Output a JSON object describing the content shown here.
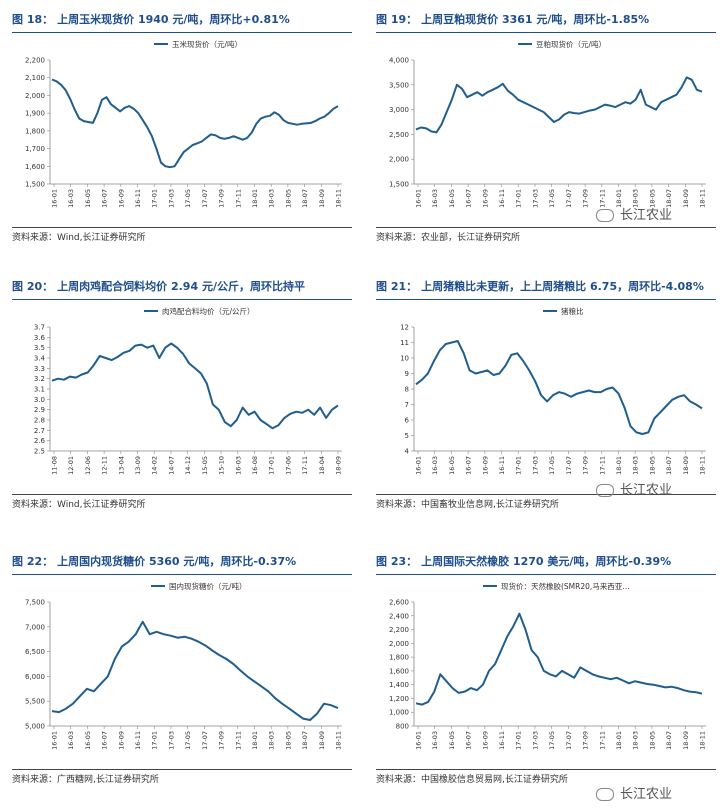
{
  "watermark": "长江农业",
  "chart_data": [
    {
      "id": "p1",
      "type": "line",
      "label": "图 18：",
      "title": "上周玉米现货价 1940 元/吨，周环比+0.81%",
      "source": "资料来源：Wind,长江证券研究所",
      "legend": "玉米现货价（元/吨）",
      "ylim": [
        1500,
        2200
      ],
      "yticks": [
        1500,
        1600,
        1700,
        1800,
        1900,
        2000,
        2100,
        2200
      ],
      "ytick_labels": [
        "1,500",
        "1,600",
        "1,700",
        "1,800",
        "1,900",
        "2,000",
        "2,100",
        "2,200"
      ],
      "xticks": [
        "16-01",
        "16-03",
        "16-05",
        "16-07",
        "16-09",
        "16-11",
        "17-01",
        "17-03",
        "17-05",
        "17-07",
        "17-09",
        "17-11",
        "18-01",
        "18-03",
        "18-05",
        "18-07",
        "18-09",
        "18-11"
      ],
      "series": [
        {
          "color": "#1f5e8e",
          "values": [
            2090,
            2080,
            2060,
            2030,
            1980,
            1920,
            1870,
            1855,
            1850,
            1845,
            1900,
            1975,
            1990,
            1950,
            1930,
            1910,
            1930,
            1940,
            1925,
            1900,
            1860,
            1820,
            1770,
            1700,
            1620,
            1600,
            1595,
            1600,
            1640,
            1680,
            1700,
            1720,
            1730,
            1740,
            1760,
            1780,
            1775,
            1760,
            1755,
            1760,
            1770,
            1760,
            1750,
            1760,
            1790,
            1840,
            1870,
            1880,
            1885,
            1905,
            1890,
            1860,
            1845,
            1840,
            1835,
            1840,
            1842,
            1845,
            1855,
            1870,
            1880,
            1900,
            1925,
            1940
          ]
        }
      ]
    },
    {
      "id": "p2",
      "type": "line",
      "label": "图 19：",
      "title": "上周豆粕现货价 3361 元/吨，周环比-1.85%",
      "source": "资料来源：农业部，长江证券研究所",
      "legend": "豆粕现货价（元/吨）",
      "ylim": [
        1500,
        4000
      ],
      "yticks": [
        1500,
        2000,
        2500,
        3000,
        3500,
        4000
      ],
      "ytick_labels": [
        "1,500",
        "2,000",
        "2,500",
        "3,000",
        "3,500",
        "4,000"
      ],
      "xticks": [
        "16-01",
        "16-03",
        "16-05",
        "16-07",
        "16-09",
        "16-11",
        "17-01",
        "17-03",
        "17-05",
        "17-07",
        "17-09",
        "17-11",
        "18-01",
        "18-03",
        "18-05",
        "18-07",
        "18-09",
        "18-11"
      ],
      "series": [
        {
          "color": "#1f5e8e",
          "values": [
            2600,
            2640,
            2620,
            2560,
            2540,
            2700,
            2950,
            3200,
            3500,
            3420,
            3250,
            3300,
            3350,
            3280,
            3350,
            3400,
            3450,
            3520,
            3380,
            3300,
            3200,
            3150,
            3100,
            3050,
            3000,
            2950,
            2850,
            2750,
            2800,
            2900,
            2950,
            2930,
            2920,
            2950,
            2980,
            3000,
            3050,
            3100,
            3080,
            3050,
            3100,
            3150,
            3120,
            3200,
            3400,
            3100,
            3050,
            3000,
            3150,
            3200,
            3250,
            3300,
            3450,
            3650,
            3600,
            3400,
            3361
          ]
        }
      ]
    },
    {
      "id": "p3",
      "type": "line",
      "label": "图 20：",
      "title": "上周肉鸡配合饲料均价 2.94 元/公斤，周环比持平",
      "source": "资料来源：Wind,长江证券研究所",
      "legend": "肉鸡配合料均价（元/公斤）",
      "ylim": [
        2.5,
        3.7
      ],
      "yticks": [
        2.5,
        2.6,
        2.7,
        2.8,
        2.9,
        3.0,
        3.1,
        3.2,
        3.3,
        3.4,
        3.5,
        3.6,
        3.7
      ],
      "ytick_labels": [
        "2.5",
        "2.6",
        "2.7",
        "2.8",
        "2.9",
        "3.0",
        "3.1",
        "3.2",
        "3.3",
        "3.4",
        "3.5",
        "3.6",
        "3.7"
      ],
      "xticks": [
        "11-08",
        "12-01",
        "12-06",
        "12-11",
        "13-04",
        "13-09",
        "14-02",
        "14-07",
        "14-12",
        "15-05",
        "15-10",
        "16-03",
        "16-08",
        "17-01",
        "17-06",
        "17-11",
        "18-04",
        "18-09"
      ],
      "series": [
        {
          "color": "#1f5e8e",
          "values": [
            3.18,
            3.2,
            3.19,
            3.22,
            3.21,
            3.24,
            3.26,
            3.33,
            3.42,
            3.4,
            3.38,
            3.41,
            3.45,
            3.47,
            3.52,
            3.53,
            3.5,
            3.52,
            3.4,
            3.5,
            3.54,
            3.5,
            3.44,
            3.35,
            3.3,
            3.25,
            3.15,
            2.95,
            2.9,
            2.78,
            2.74,
            2.8,
            2.92,
            2.85,
            2.88,
            2.8,
            2.76,
            2.72,
            2.75,
            2.82,
            2.86,
            2.88,
            2.87,
            2.9,
            2.85,
            2.92,
            2.82,
            2.9,
            2.94
          ]
        }
      ]
    },
    {
      "id": "p4",
      "type": "line",
      "label": "图 21：",
      "title": "上周猪粮比未更新，上上周猪粮比 6.75，周环比-4.08%",
      "source": "资料来源：中国畜牧业信息网,长江证券研究所",
      "legend": "猪粮比",
      "ylim": [
        4,
        12
      ],
      "yticks": [
        4,
        5,
        6,
        7,
        8,
        9,
        10,
        11,
        12
      ],
      "ytick_labels": [
        "4",
        "5",
        "6",
        "7",
        "8",
        "9",
        "10",
        "11",
        "12"
      ],
      "xticks": [
        "16-01",
        "16-03",
        "16-05",
        "16-07",
        "16-09",
        "16-11",
        "17-01",
        "17-03",
        "17-05",
        "17-07",
        "17-09",
        "17-11",
        "18-01",
        "18-03",
        "18-05",
        "18-07",
        "18-09",
        "18-11"
      ],
      "series": [
        {
          "color": "#1f5e8e",
          "values": [
            8.3,
            8.6,
            9.0,
            9.8,
            10.5,
            10.9,
            11.0,
            11.1,
            10.3,
            9.2,
            9.0,
            9.1,
            9.2,
            8.9,
            9.0,
            9.5,
            10.2,
            10.3,
            9.8,
            9.2,
            8.5,
            7.6,
            7.2,
            7.6,
            7.8,
            7.7,
            7.5,
            7.7,
            7.8,
            7.9,
            7.8,
            7.8,
            8.0,
            8.1,
            7.7,
            6.8,
            5.6,
            5.2,
            5.1,
            5.2,
            6.1,
            6.5,
            6.9,
            7.3,
            7.5,
            7.6,
            7.2,
            7.0,
            6.75
          ]
        }
      ]
    },
    {
      "id": "p5",
      "type": "line",
      "label": "图 22：",
      "title": "上周国内现货糖价 5360 元/吨，周环比-0.37%",
      "source": "资料来源：广西糖网,长江证券研究所",
      "legend": "国内现货糖价（元/吨）",
      "ylim": [
        5000,
        7500
      ],
      "yticks": [
        5000,
        5500,
        6000,
        6500,
        7000,
        7500
      ],
      "ytick_labels": [
        "5,000",
        "5,500",
        "6,000",
        "6,500",
        "7,000",
        "7,500"
      ],
      "xticks": [
        "16-01",
        "16-03",
        "16-05",
        "16-07",
        "16-09",
        "16-11",
        "17-01",
        "17-03",
        "17-05",
        "17-07",
        "17-09",
        "17-11",
        "18-01",
        "18-03",
        "18-05",
        "18-07",
        "18-09",
        "18-11"
      ],
      "series": [
        {
          "color": "#1f5e8e",
          "values": [
            5300,
            5280,
            5350,
            5450,
            5600,
            5750,
            5700,
            5850,
            6000,
            6350,
            6600,
            6700,
            6850,
            7100,
            6850,
            6900,
            6850,
            6820,
            6780,
            6800,
            6760,
            6700,
            6620,
            6520,
            6430,
            6350,
            6250,
            6120,
            6000,
            5900,
            5800,
            5700,
            5560,
            5450,
            5350,
            5250,
            5150,
            5120,
            5250,
            5450,
            5420,
            5360
          ]
        }
      ]
    },
    {
      "id": "p6",
      "type": "line",
      "label": "图 23：",
      "title": "上周国际天然橡胶 1270 美元/吨，周环比-0.39%",
      "source": "资料来源：中国橡胶信息贸易网,长江证券研究所",
      "legend": "现货价：天然橡胶(SMR20,马来西亚…",
      "ylim": [
        800,
        2600
      ],
      "yticks": [
        800,
        1000,
        1200,
        1400,
        1600,
        1800,
        2000,
        2200,
        2400,
        2600
      ],
      "ytick_labels": [
        "800",
        "1,000",
        "1,200",
        "1,400",
        "1,600",
        "1,800",
        "2,000",
        "2,200",
        "2,400",
        "2,600"
      ],
      "xticks": [
        "16-01",
        "16-03",
        "16-05",
        "16-07",
        "16-09",
        "16-11",
        "17-01",
        "17-03",
        "17-05",
        "17-07",
        "17-09",
        "17-11",
        "18-01",
        "18-03",
        "18-05",
        "18-07",
        "18-09",
        "18-11"
      ],
      "series": [
        {
          "color": "#1f5e8e",
          "values": [
            1130,
            1110,
            1150,
            1300,
            1550,
            1450,
            1350,
            1280,
            1300,
            1350,
            1320,
            1400,
            1600,
            1700,
            1900,
            2100,
            2250,
            2430,
            2200,
            1900,
            1800,
            1600,
            1550,
            1520,
            1600,
            1550,
            1500,
            1650,
            1600,
            1550,
            1520,
            1500,
            1480,
            1500,
            1460,
            1420,
            1450,
            1430,
            1410,
            1400,
            1380,
            1360,
            1370,
            1350,
            1320,
            1300,
            1290,
            1270
          ]
        }
      ]
    }
  ]
}
